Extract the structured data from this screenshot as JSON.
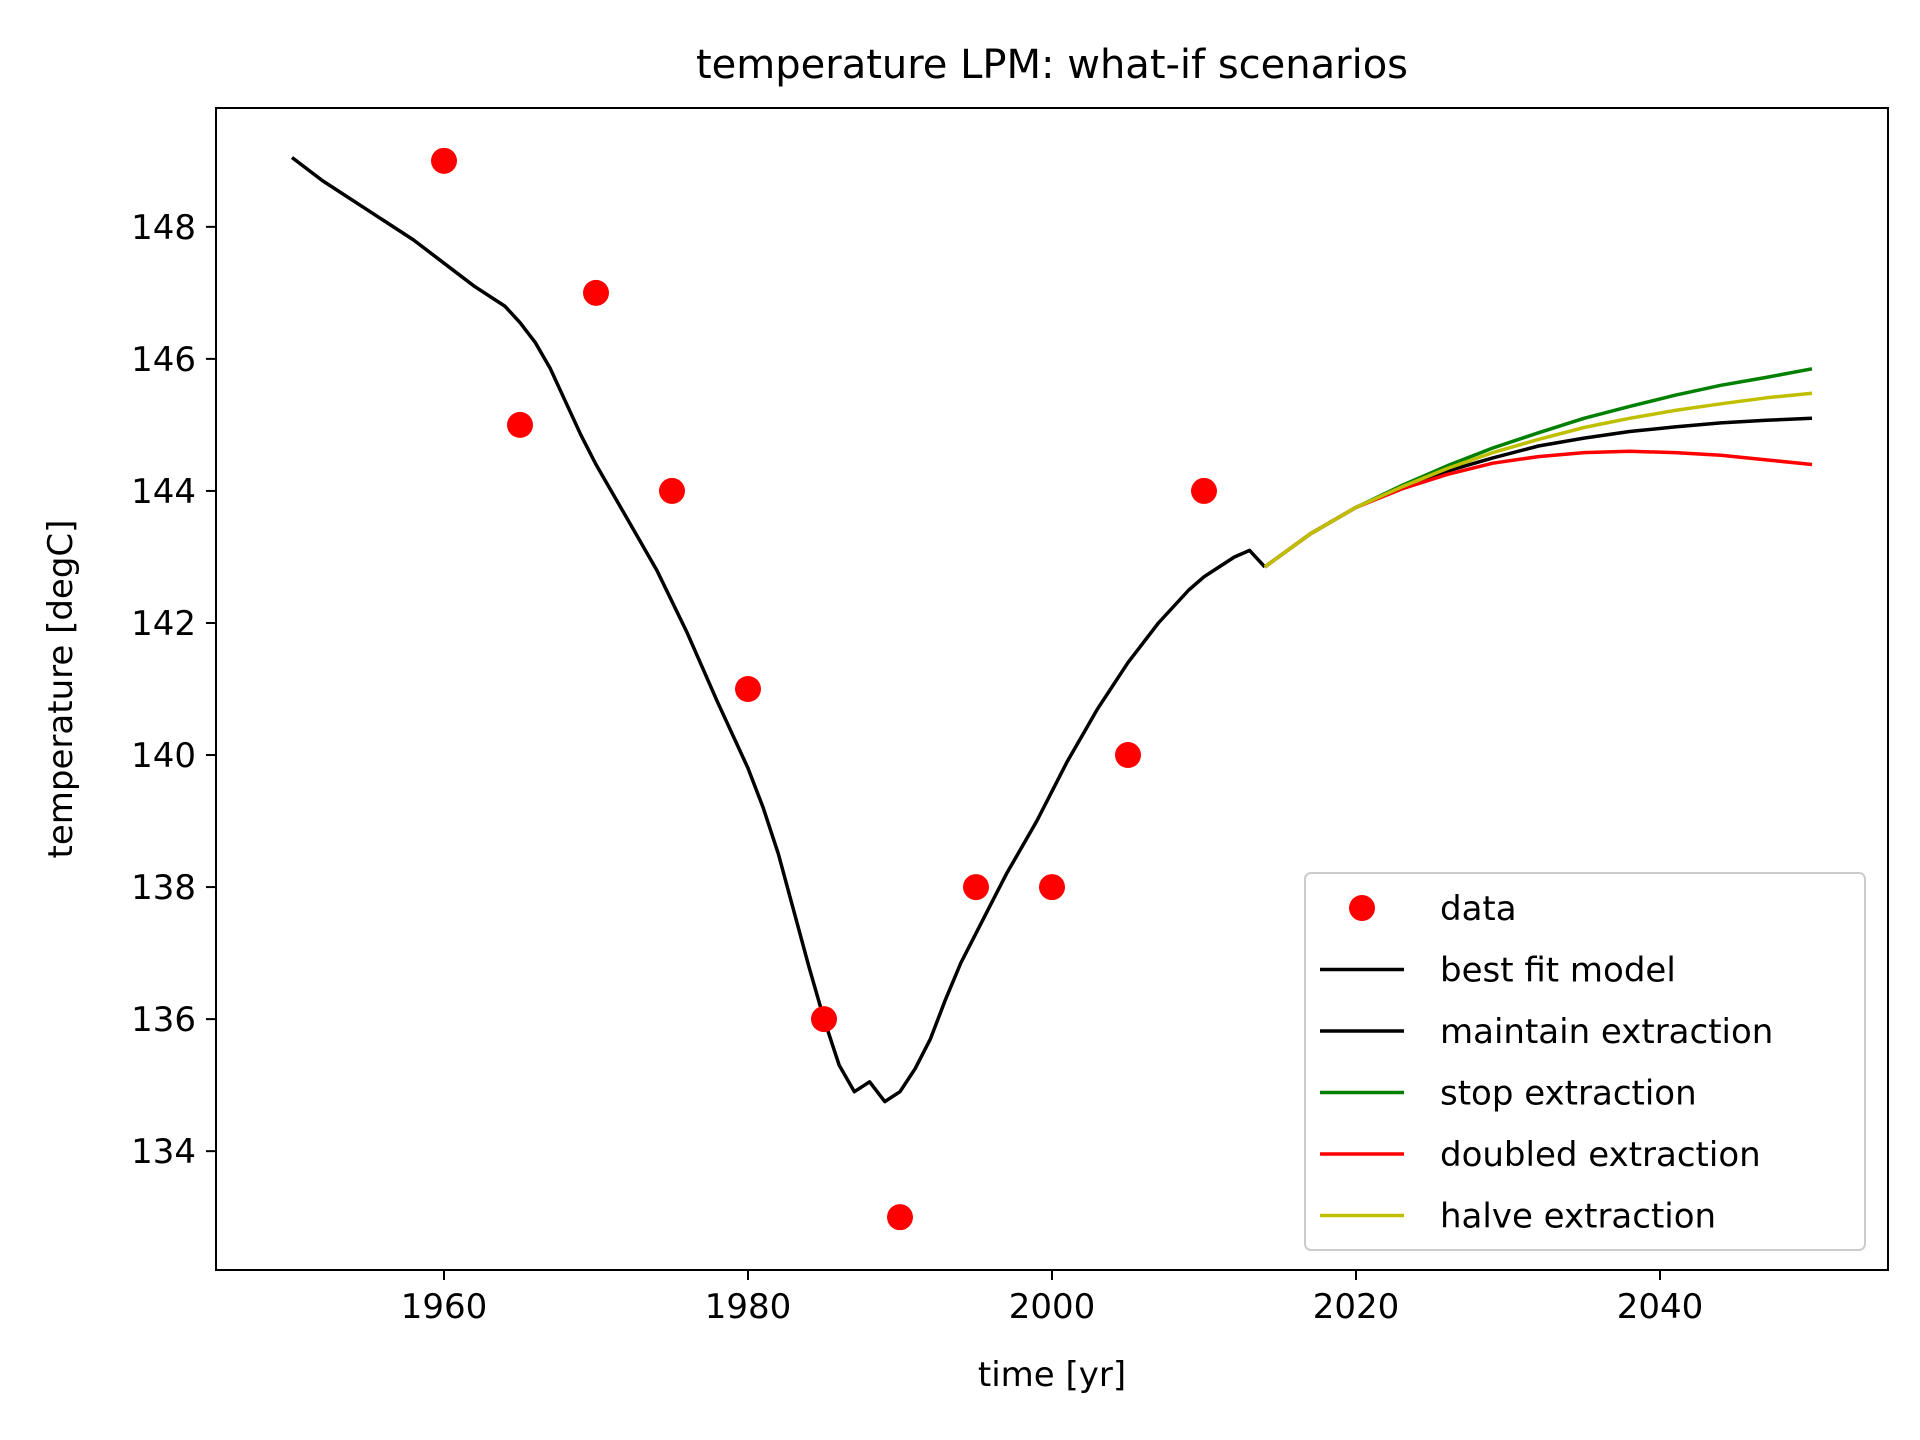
{
  "chart_data": {
    "type": "line",
    "title": "temperature LPM: what-if scenarios",
    "xlabel": "time [yr]",
    "ylabel": "temperature [degC]",
    "xlim": [
      1945,
      2055
    ],
    "ylim": [
      132.2,
      149.8
    ],
    "xticks": [
      1960,
      1980,
      2000,
      2020,
      2040
    ],
    "yticks": [
      134,
      136,
      138,
      140,
      142,
      144,
      146,
      148
    ],
    "grid": false,
    "legend_position": "lower-right",
    "colors": {
      "data": "#ff0000",
      "best_fit": "#000000",
      "maintain": "#000000",
      "stop": "#008000",
      "doubled": "#ff0000",
      "halve": "#bfbf00"
    },
    "data_points": {
      "name": "data",
      "x": [
        1960,
        1965,
        1970,
        1975,
        1980,
        1985,
        1990,
        1995,
        2000,
        2005,
        2010
      ],
      "y": [
        149,
        145,
        147,
        144,
        141,
        136,
        133,
        138,
        138,
        140,
        144
      ]
    },
    "series": [
      {
        "name": "best fit model",
        "color": "#000000",
        "x": [
          1950,
          1952,
          1955,
          1958,
          1960,
          1962,
          1964,
          1965,
          1966,
          1967,
          1968,
          1969,
          1970,
          1972,
          1974,
          1976,
          1978,
          1980,
          1981,
          1982,
          1983,
          1984,
          1985,
          1986,
          1987,
          1988,
          1989,
          1990,
          1991,
          1992,
          1993,
          1994,
          1995,
          1996,
          1997,
          1998,
          1999,
          2000,
          2001,
          2002,
          2003,
          2004,
          2005,
          2006,
          2007,
          2008,
          2009,
          2010,
          2011,
          2012,
          2013,
          2014
        ],
        "y": [
          149.05,
          148.7,
          148.25,
          147.8,
          147.45,
          147.1,
          146.8,
          146.55,
          146.25,
          145.85,
          145.35,
          144.85,
          144.4,
          143.6,
          142.8,
          141.85,
          140.8,
          139.8,
          139.2,
          138.5,
          137.65,
          136.8,
          136.0,
          135.3,
          134.9,
          135.05,
          134.75,
          134.9,
          135.25,
          135.7,
          136.3,
          136.85,
          137.3,
          137.75,
          138.2,
          138.6,
          139.0,
          139.45,
          139.9,
          140.3,
          140.7,
          141.05,
          141.4,
          141.7,
          142.0,
          142.25,
          142.5,
          142.7,
          142.85,
          143.0,
          143.1,
          142.85
        ]
      },
      {
        "name": "maintain extraction",
        "color": "#000000",
        "x": [
          2014,
          2017,
          2020,
          2023,
          2026,
          2029,
          2032,
          2035,
          2038,
          2041,
          2044,
          2047,
          2050
        ],
        "y": [
          142.85,
          143.35,
          143.75,
          144.05,
          144.3,
          144.5,
          144.68,
          144.8,
          144.9,
          144.97,
          145.03,
          145.07,
          145.1
        ]
      },
      {
        "name": "stop extraction",
        "color": "#008000",
        "x": [
          2014,
          2017,
          2020,
          2023,
          2026,
          2029,
          2032,
          2035,
          2038,
          2041,
          2044,
          2047,
          2050
        ],
        "y": [
          142.85,
          143.35,
          143.75,
          144.08,
          144.38,
          144.65,
          144.88,
          145.1,
          145.28,
          145.45,
          145.6,
          145.72,
          145.85
        ]
      },
      {
        "name": "doubled extraction",
        "color": "#ff0000",
        "x": [
          2014,
          2017,
          2020,
          2023,
          2026,
          2029,
          2032,
          2035,
          2038,
          2041,
          2044,
          2047,
          2050
        ],
        "y": [
          142.85,
          143.35,
          143.75,
          144.03,
          144.25,
          144.42,
          144.52,
          144.58,
          144.6,
          144.58,
          144.54,
          144.47,
          144.4
        ]
      },
      {
        "name": "halve extraction",
        "color": "#bfbf00",
        "x": [
          2014,
          2017,
          2020,
          2023,
          2026,
          2029,
          2032,
          2035,
          2038,
          2041,
          2044,
          2047,
          2050
        ],
        "y": [
          142.85,
          143.35,
          143.75,
          144.06,
          144.34,
          144.58,
          144.78,
          144.96,
          145.1,
          145.22,
          145.32,
          145.41,
          145.48
        ]
      }
    ]
  }
}
